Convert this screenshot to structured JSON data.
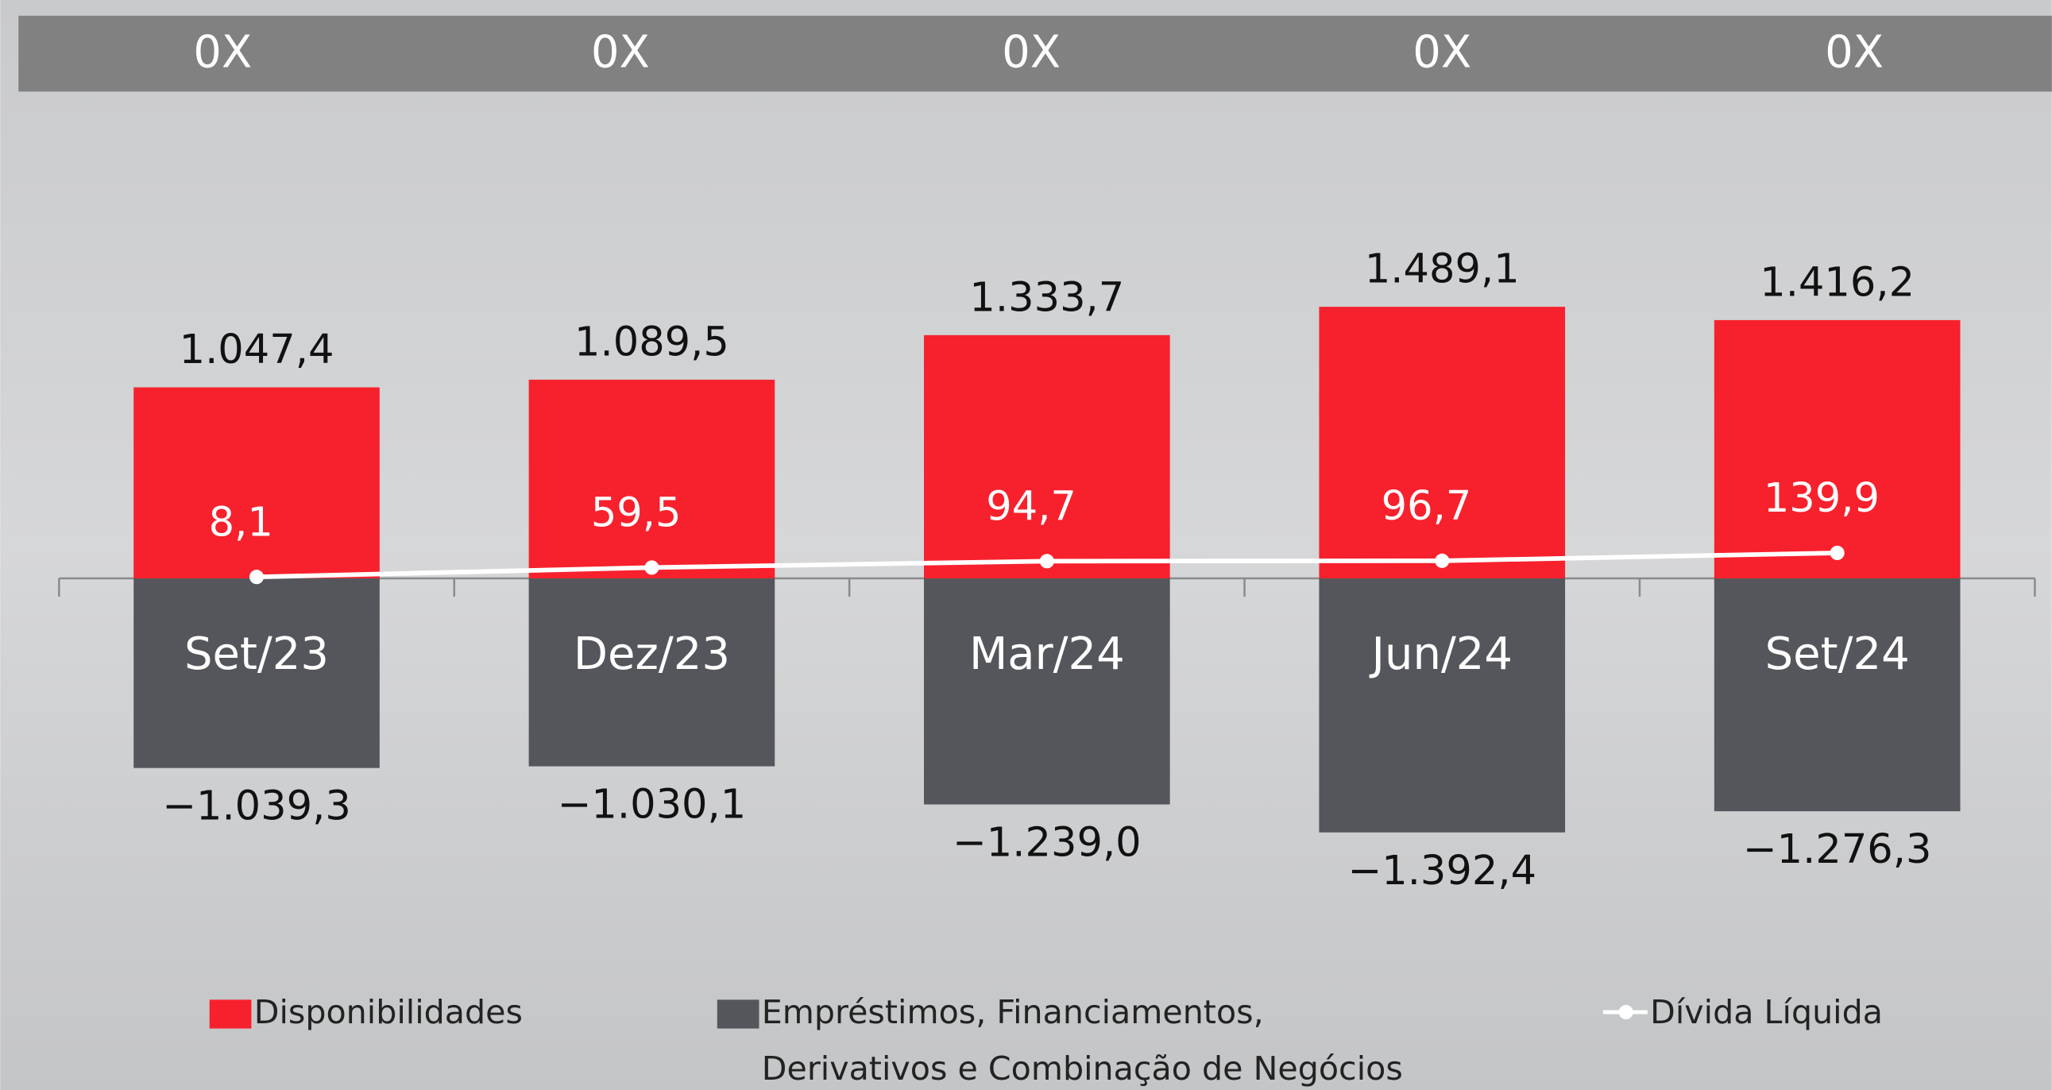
{
  "header": {
    "labels": [
      "0X",
      "0X",
      "0X",
      "0X",
      "0X"
    ]
  },
  "chart_data": {
    "type": "bar",
    "categories": [
      "Set/23",
      "Dez/23",
      "Mar/24",
      "Jun/24",
      "Set/24"
    ],
    "series": [
      {
        "name": "Disponibilidades",
        "color": "#f7212d",
        "values": [
          1047.4,
          1089.5,
          1333.7,
          1489.1,
          1416.2
        ],
        "value_labels": [
          "1.047,4",
          "1.089,5",
          "1.333,7",
          "1.489,1",
          "1.416,2"
        ]
      },
      {
        "name": "Empréstimos, Financiamentos, Derivativos e Combinação de Negócios",
        "color": "#55565b",
        "values": [
          -1039.3,
          -1030.1,
          -1239.0,
          -1392.4,
          -1276.3
        ],
        "value_labels": [
          "−1.039,3",
          "−1.030,1",
          "−1.239,0",
          "−1.392,4",
          "−1.276,3"
        ]
      },
      {
        "name": "Dívida Líquida",
        "type": "line",
        "color": "#ffffff",
        "values": [
          8.1,
          59.5,
          94.7,
          96.7,
          139.9
        ],
        "value_labels": [
          "8,1",
          "59,5",
          "94,7",
          "96,7",
          "139,9"
        ]
      }
    ],
    "ylim": [
      -1900,
      2600
    ]
  }
}
